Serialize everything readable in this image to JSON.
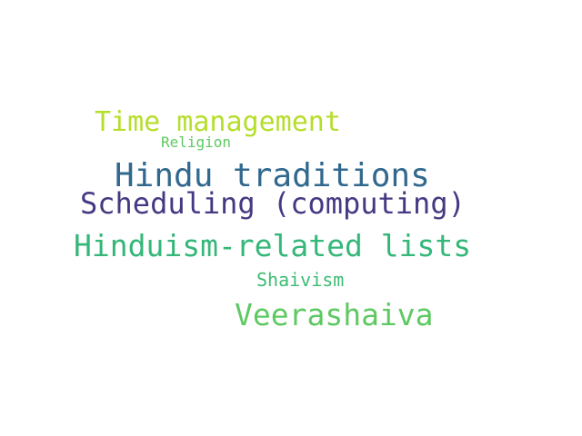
{
  "words": [
    {
      "text": "Time management",
      "color": "#b5de2b"
    },
    {
      "text": "Religion",
      "color": "#5ec962"
    },
    {
      "text": "Hindu traditions",
      "color": "#31688e"
    },
    {
      "text": "Scheduling (computing)",
      "color": "#443a83"
    },
    {
      "text": "Hinduism-related lists",
      "color": "#35b779"
    },
    {
      "text": "Shaivism",
      "color": "#3dbc74"
    },
    {
      "text": "Veerashaiva",
      "color": "#5ec962"
    }
  ]
}
